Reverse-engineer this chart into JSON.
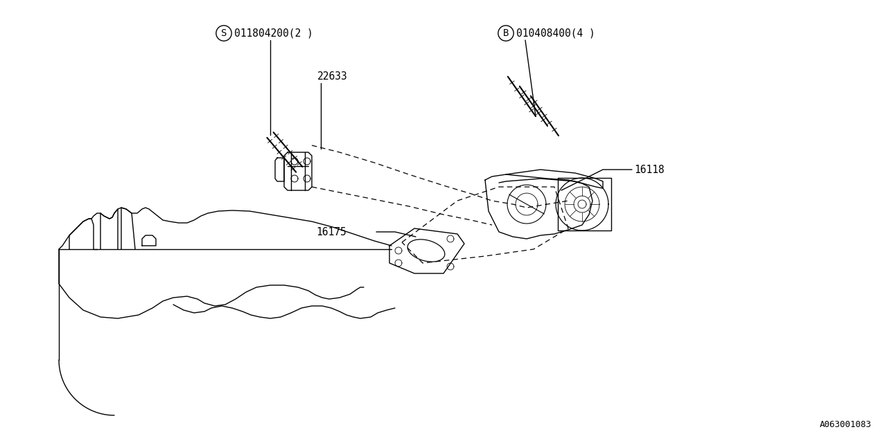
{
  "background_color": "#ffffff",
  "line_color": "#000000",
  "diagram_id": "A063001083",
  "fig_width": 12.8,
  "fig_height": 6.4,
  "dpi": 100,
  "label_S": "S",
  "label_S_num": "011804200(2 )",
  "label_B": "B",
  "label_B_num": "010408400(4 )",
  "label_22633": "22633",
  "label_16118": "16118",
  "label_16175": "16175"
}
